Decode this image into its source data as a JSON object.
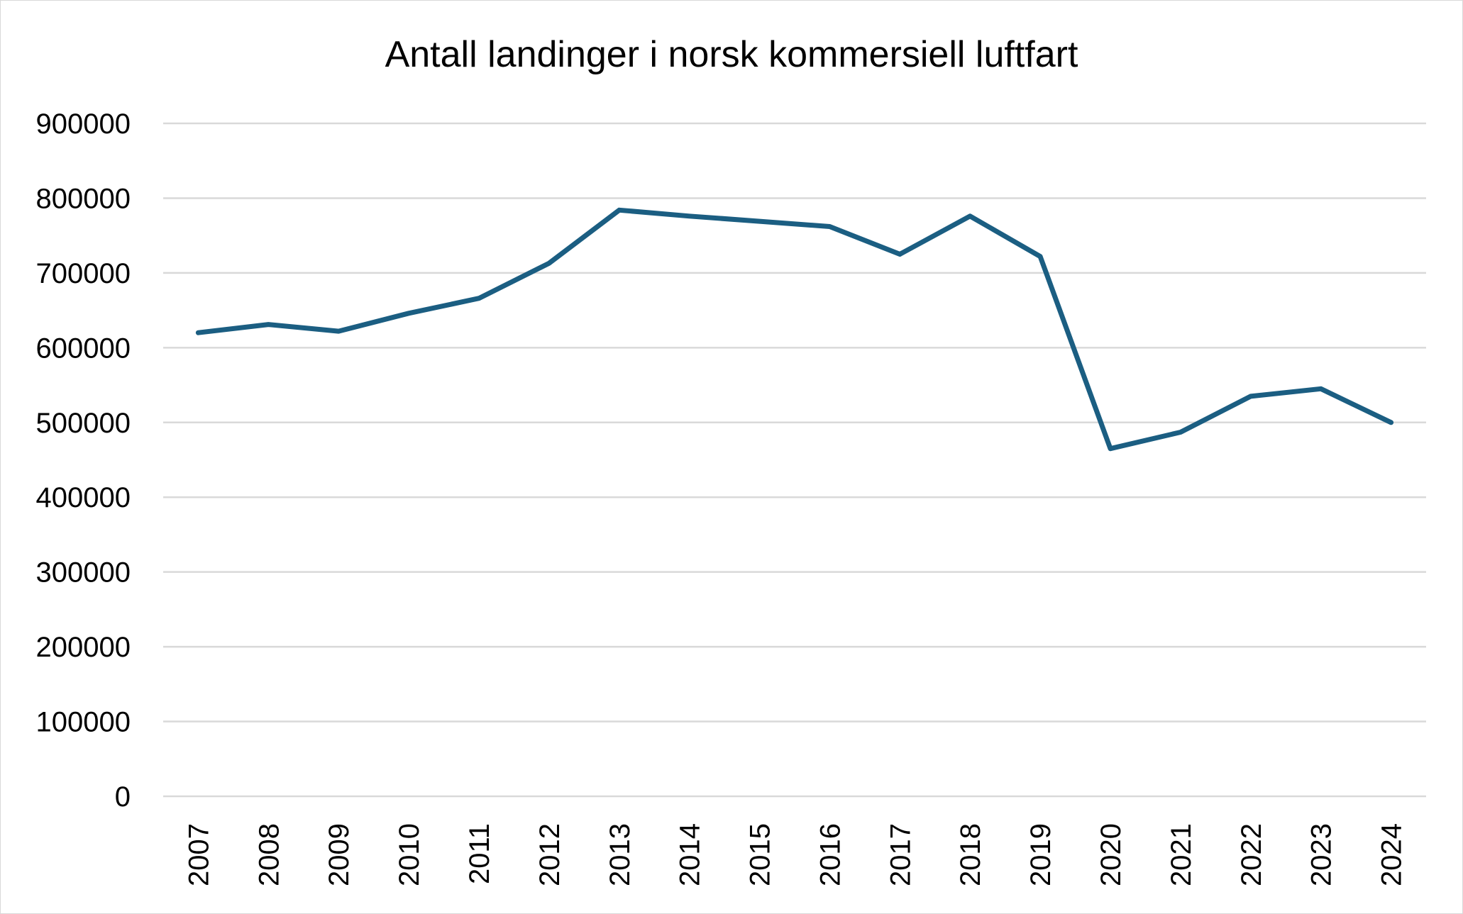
{
  "chart_data": {
    "type": "line",
    "title": "Antall landinger i norsk kommersiell luftfart",
    "xlabel": "",
    "ylabel": "",
    "categories": [
      "2007",
      "2008",
      "2009",
      "2010",
      "2011",
      "2012",
      "2013",
      "2014",
      "2015",
      "2016",
      "2017",
      "2018",
      "2019",
      "2020",
      "2021",
      "2022",
      "2023",
      "2024"
    ],
    "series": [
      {
        "name": "Antall landinger",
        "color": "#1b5e82",
        "values": [
          620000,
          631000,
          622000,
          646000,
          666000,
          713000,
          784000,
          776000,
          769000,
          762000,
          725000,
          776000,
          722000,
          465000,
          487000,
          535000,
          545000,
          500000
        ]
      }
    ],
    "ylim": [
      0,
      900000
    ],
    "yticks": [
      "0",
      "100000",
      "200000",
      "300000",
      "400000",
      "500000",
      "600000",
      "700000",
      "800000",
      "900000"
    ],
    "grid": true,
    "legend": "none"
  }
}
